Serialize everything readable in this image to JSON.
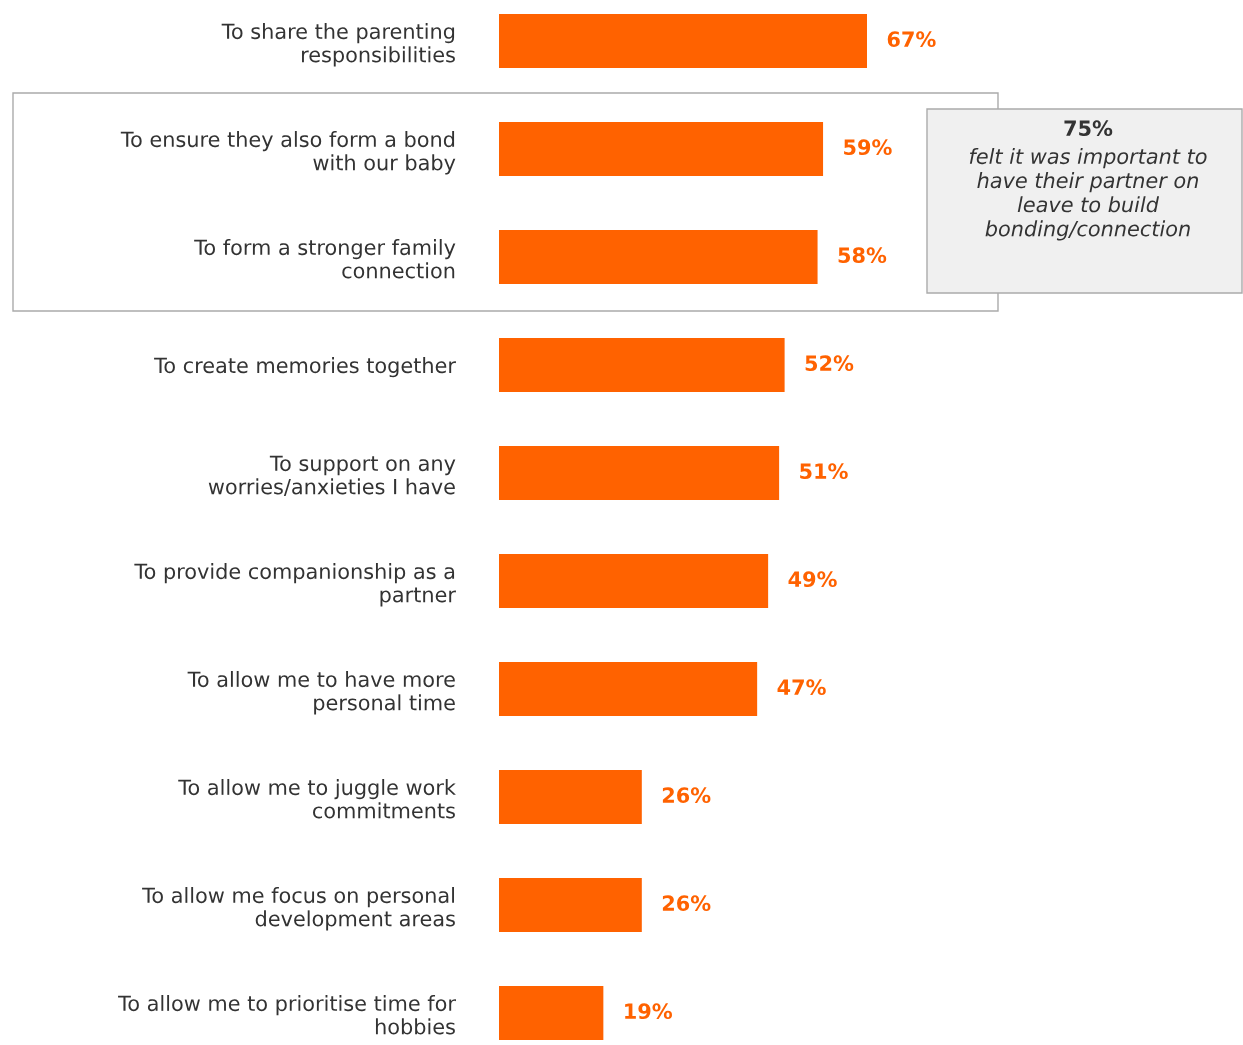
{
  "chart_data": {
    "type": "bar",
    "orientation": "horizontal",
    "categories": [
      "To share the parenting\nresponsibilities",
      "To ensure they also form a bond\nwith our baby",
      "To form a stronger family\nconnection",
      "To create memories together",
      "To support on any\nworries/anxieties I have",
      "To provide companionship as a\npartner",
      "To allow me to have more\npersonal time",
      "To allow me to juggle work\ncommitments",
      "To allow me focus on personal\ndevelopment areas",
      "To allow me to prioritise time for\nhobbies"
    ],
    "values": [
      67,
      59,
      58,
      52,
      51,
      49,
      47,
      26,
      26,
      19
    ],
    "value_labels": [
      "67%",
      "59%",
      "58%",
      "52%",
      "51%",
      "49%",
      "47%",
      "26%",
      "26%",
      "19%"
    ],
    "color": "#ff6200",
    "annotations": [
      "75%",
      "felt it was important to\nhave their partner on\nleave to build\nbonding/connection"
    ],
    "grid": false,
    "legend": false
  }
}
